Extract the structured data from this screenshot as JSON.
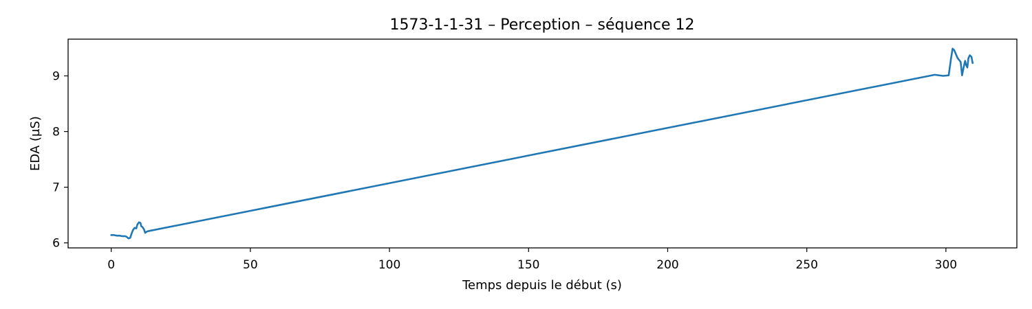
{
  "chart_data": {
    "type": "line",
    "title": "1573-1-1-31 – Perception – séquence 12",
    "xlabel": "Temps depuis le début (s)",
    "ylabel": "EDA (µS)",
    "xlim": [
      -15.5,
      325.5
    ],
    "ylim": [
      5.91,
      9.66
    ],
    "xticks": [
      0,
      50,
      100,
      150,
      200,
      250,
      300
    ],
    "yticks": [
      6,
      7,
      8,
      9
    ],
    "grid": false,
    "legend": "none",
    "series": [
      {
        "color": "#1f77b4",
        "points": [
          [
            0,
            6.14
          ],
          [
            1,
            6.14
          ],
          [
            2,
            6.13
          ],
          [
            3,
            6.13
          ],
          [
            4,
            6.12
          ],
          [
            5,
            6.12
          ],
          [
            5.5,
            6.11
          ],
          [
            6.2,
            6.08
          ],
          [
            6.8,
            6.09
          ],
          [
            7.2,
            6.15
          ],
          [
            7.8,
            6.23
          ],
          [
            8.4,
            6.27
          ],
          [
            9.0,
            6.26
          ],
          [
            9.4,
            6.33
          ],
          [
            10.0,
            6.37
          ],
          [
            10.5,
            6.36
          ],
          [
            10.8,
            6.3
          ],
          [
            11.3,
            6.28
          ],
          [
            11.8,
            6.24
          ],
          [
            12.2,
            6.18
          ],
          [
            12.7,
            6.2
          ],
          [
            13.2,
            6.21
          ],
          [
            296,
            9.02
          ],
          [
            299,
            9.0
          ],
          [
            301,
            9.01
          ],
          [
            301.8,
            9.3
          ],
          [
            302.4,
            9.49
          ],
          [
            303.0,
            9.46
          ],
          [
            304.2,
            9.32
          ],
          [
            305.3,
            9.25
          ],
          [
            305.8,
            9.01
          ],
          [
            306.4,
            9.16
          ],
          [
            306.9,
            9.27
          ],
          [
            307.3,
            9.19
          ],
          [
            307.7,
            9.15
          ],
          [
            308.1,
            9.32
          ],
          [
            308.6,
            9.37
          ],
          [
            309.2,
            9.34
          ],
          [
            309.6,
            9.23
          ]
        ]
      }
    ]
  }
}
